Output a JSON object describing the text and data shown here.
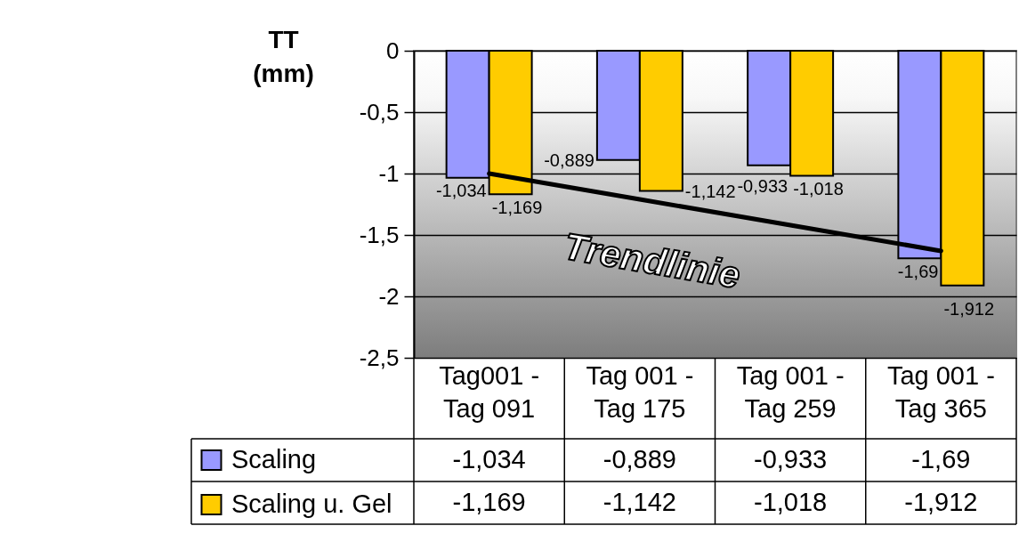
{
  "chart_data": {
    "type": "bar",
    "ylabel": "TT (mm)",
    "categories": [
      "Tag001 - Tag 091",
      "Tag 001 - Tag 175",
      "Tag 001 - Tag 259",
      "Tag 001 - Tag 365"
    ],
    "series": [
      {
        "name": "Scaling",
        "color": "#9999ff",
        "values": [
          -1.034,
          -0.889,
          -0.933,
          -1.69
        ],
        "value_labels": [
          "-1,034",
          "-0,889",
          "-0,933",
          "-1,69"
        ]
      },
      {
        "name": "Scaling u. Gel",
        "color": "#ffcc00",
        "values": [
          -1.169,
          -1.142,
          -1.018,
          -1.912
        ],
        "value_labels": [
          "-1,169",
          "-1,142",
          "-1,018",
          "-1,912"
        ]
      },
      {
        "name": "Trendlinie",
        "type": "line",
        "color": "#000000",
        "values": [
          -1.0,
          -1.21,
          -1.42,
          -1.63
        ]
      }
    ],
    "ylim": [
      -2.5,
      0
    ],
    "yticks": [
      {
        "value": -2.5,
        "label": "-2,5"
      },
      -2,
      {
        "value": -1.5,
        "label": "-1,5"
      },
      -1,
      {
        "value": -0.5,
        "label": "-0,5"
      },
      0
    ],
    "grid": "y",
    "legend": "bottom"
  }
}
